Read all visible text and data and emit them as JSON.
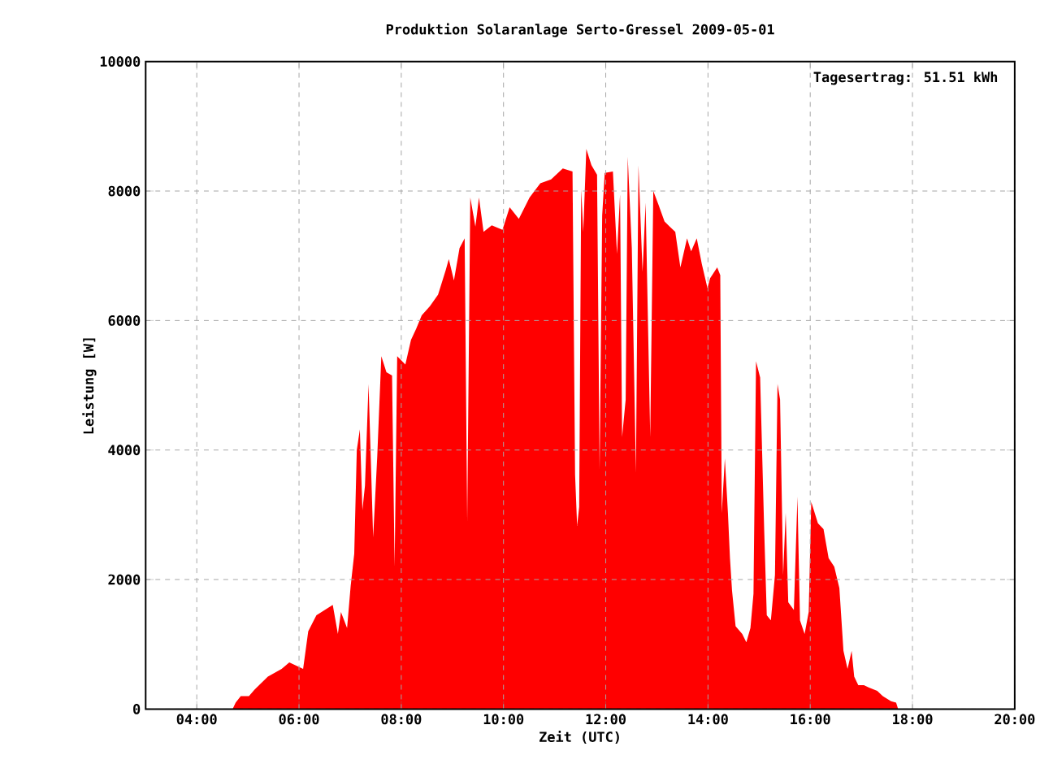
{
  "chart_data": {
    "type": "area",
    "title": "Produktion Solaranlage Serto-Gressel 2009-05-01",
    "xlabel": "Zeit (UTC)",
    "ylabel": "Leistung [W]",
    "annotations": [
      "Tagesertrag: 51.51 kWh"
    ],
    "xlim": [
      3,
      20
    ],
    "ylim": [
      0,
      10000
    ],
    "xticks": [
      {
        "value": 4,
        "label": "04:00"
      },
      {
        "value": 6,
        "label": "06:00"
      },
      {
        "value": 8,
        "label": "08:00"
      },
      {
        "value": 10,
        "label": "10:00"
      },
      {
        "value": 12,
        "label": "12:00"
      },
      {
        "value": 14,
        "label": "14:00"
      },
      {
        "value": 16,
        "label": "16:00"
      },
      {
        "value": 18,
        "label": "18:00"
      },
      {
        "value": 20,
        "label": "20:00"
      }
    ],
    "yticks": [
      0,
      2000,
      4000,
      6000,
      8000,
      10000
    ],
    "grid": true,
    "series": [
      {
        "color": "#ff0000",
        "x": [
          4.7,
          4.76,
          4.86,
          5.02,
          5.13,
          5.39,
          5.66,
          5.81,
          6.08,
          6.18,
          6.34,
          6.5,
          6.66,
          6.76,
          6.82,
          6.94,
          7.01,
          7.08,
          7.13,
          7.19,
          7.24,
          7.29,
          7.36,
          7.45,
          7.53,
          7.61,
          7.71,
          7.82,
          7.87,
          7.92,
          8.08,
          8.19,
          8.29,
          8.4,
          8.56,
          8.72,
          8.87,
          8.93,
          9.03,
          9.14,
          9.24,
          9.29,
          9.35,
          9.45,
          9.52,
          9.61,
          9.77,
          9.98,
          10.12,
          10.3,
          10.51,
          10.72,
          10.93,
          11.16,
          11.35,
          11.4,
          11.44,
          11.48,
          11.52,
          11.56,
          11.62,
          11.72,
          11.83,
          11.88,
          11.93,
          11.98,
          12.14,
          12.22,
          12.28,
          12.32,
          12.39,
          12.43,
          12.51,
          12.59,
          12.64,
          12.72,
          12.78,
          12.87,
          12.93,
          13.04,
          13.15,
          13.25,
          13.36,
          13.46,
          13.59,
          13.67,
          13.78,
          13.88,
          13.99,
          14.04,
          14.18,
          14.24,
          14.27,
          14.33,
          14.39,
          14.43,
          14.47,
          14.54,
          14.67,
          14.75,
          14.83,
          14.89,
          14.94,
          15.02,
          15.1,
          15.15,
          15.23,
          15.31,
          15.36,
          15.41,
          15.47,
          15.52,
          15.57,
          15.68,
          15.75,
          15.8,
          15.89,
          15.97,
          16.02,
          16.15,
          16.26,
          16.36,
          16.47,
          16.57,
          16.65,
          16.73,
          16.81,
          16.86,
          16.94,
          17.05,
          17.15,
          17.31,
          17.42,
          17.58,
          17.68,
          17.72
        ],
        "values": [
          0,
          100,
          200,
          200,
          300,
          500,
          620,
          720,
          620,
          1200,
          1450,
          1530,
          1610,
          1160,
          1500,
          1250,
          1900,
          2400,
          4000,
          4320,
          3070,
          3450,
          5020,
          2650,
          3900,
          5450,
          5200,
          5150,
          2200,
          5450,
          5320,
          5700,
          5870,
          6080,
          6220,
          6400,
          6780,
          6950,
          6620,
          7120,
          7270,
          2900,
          7900,
          7450,
          7900,
          7370,
          7470,
          7400,
          7750,
          7570,
          7900,
          8120,
          8180,
          8350,
          8300,
          3620,
          2830,
          3120,
          8030,
          7370,
          8650,
          8400,
          8250,
          3700,
          7620,
          8280,
          8300,
          7030,
          7950,
          4200,
          4780,
          8530,
          7120,
          3650,
          8400,
          6750,
          7820,
          4200,
          8000,
          7770,
          7530,
          7450,
          7370,
          6820,
          7270,
          7070,
          7270,
          6870,
          6500,
          6650,
          6820,
          6700,
          3030,
          3870,
          3030,
          2330,
          1830,
          1280,
          1160,
          1030,
          1250,
          1780,
          5370,
          5120,
          2750,
          1450,
          1370,
          2070,
          5020,
          4780,
          2070,
          3030,
          1650,
          1530,
          3280,
          1370,
          1160,
          1500,
          3200,
          2870,
          2780,
          2330,
          2200,
          1870,
          900,
          620,
          900,
          500,
          370,
          370,
          330,
          280,
          200,
          120,
          100,
          0
        ]
      }
    ]
  }
}
